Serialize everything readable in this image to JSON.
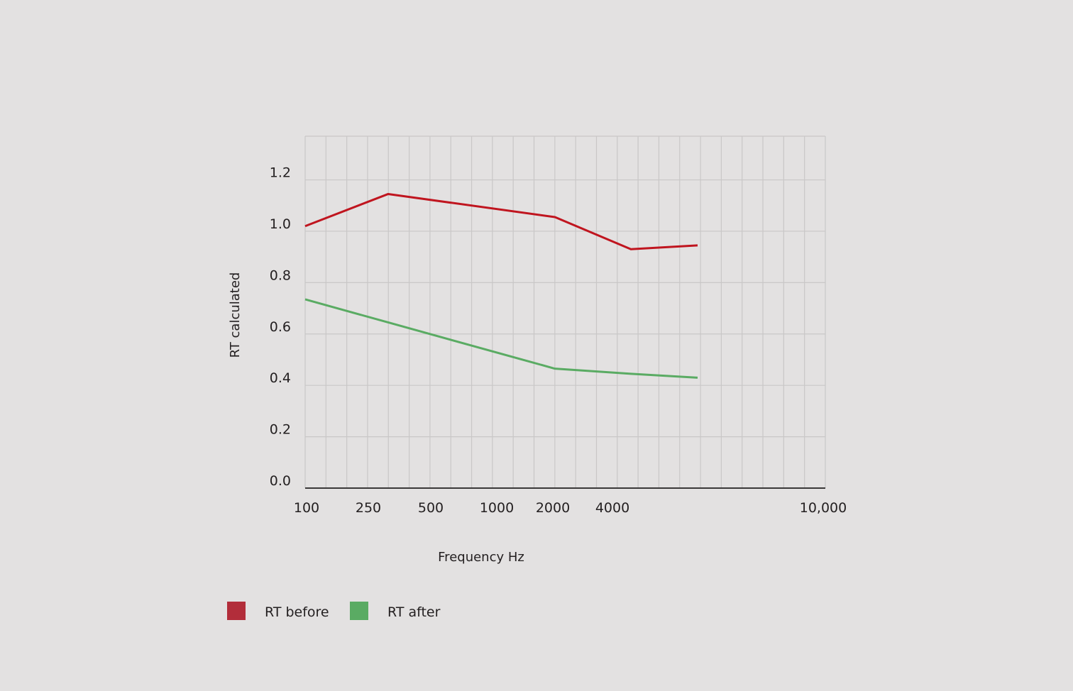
{
  "colors": {
    "background": "#e3e1e1",
    "grid": "#c9c7c7",
    "axis": "#3a3838",
    "rt_before": "#c0151f",
    "rt_after": "#5aab63",
    "legend_before": "#b22d3a",
    "legend_after": "#5aab63"
  },
  "chart_data": {
    "type": "line",
    "title": "",
    "xlabel": "Frequency Hz",
    "ylabel": "RT calculated",
    "x_scale": "log",
    "xlim": [
      100,
      10000
    ],
    "ylim": [
      0.0,
      1.37
    ],
    "grid": true,
    "legend_position": "bottom-left",
    "x_tick_values": [
      100,
      250,
      500,
      1000,
      2000,
      4000,
      10000
    ],
    "x_tick_labels": [
      "100",
      "250",
      "500",
      "1000",
      "2000",
      "4000",
      "10,000"
    ],
    "y_tick_values": [
      0.0,
      0.2,
      0.4,
      0.6,
      0.8,
      1.0,
      1.2
    ],
    "y_tick_labels": [
      "0.0",
      "0.2",
      "0.4",
      "0.6",
      "0.8",
      "1.0",
      "1.2"
    ],
    "series": [
      {
        "name": "RT before",
        "color": "#c0151f",
        "points": [
          {
            "x": 100,
            "y": 1.02
          },
          {
            "x": 315,
            "y": 1.145
          },
          {
            "x": 2000,
            "y": 1.055
          },
          {
            "x": 5000,
            "y": 0.93
          },
          {
            "x": 6300,
            "y": 0.945
          }
        ]
      },
      {
        "name": "RT after",
        "color": "#5aab63",
        "points": [
          {
            "x": 100,
            "y": 0.735
          },
          {
            "x": 315,
            "y": 0.645
          },
          {
            "x": 2000,
            "y": 0.465
          },
          {
            "x": 5000,
            "y": 0.445
          },
          {
            "x": 6300,
            "y": 0.43
          }
        ]
      }
    ]
  }
}
